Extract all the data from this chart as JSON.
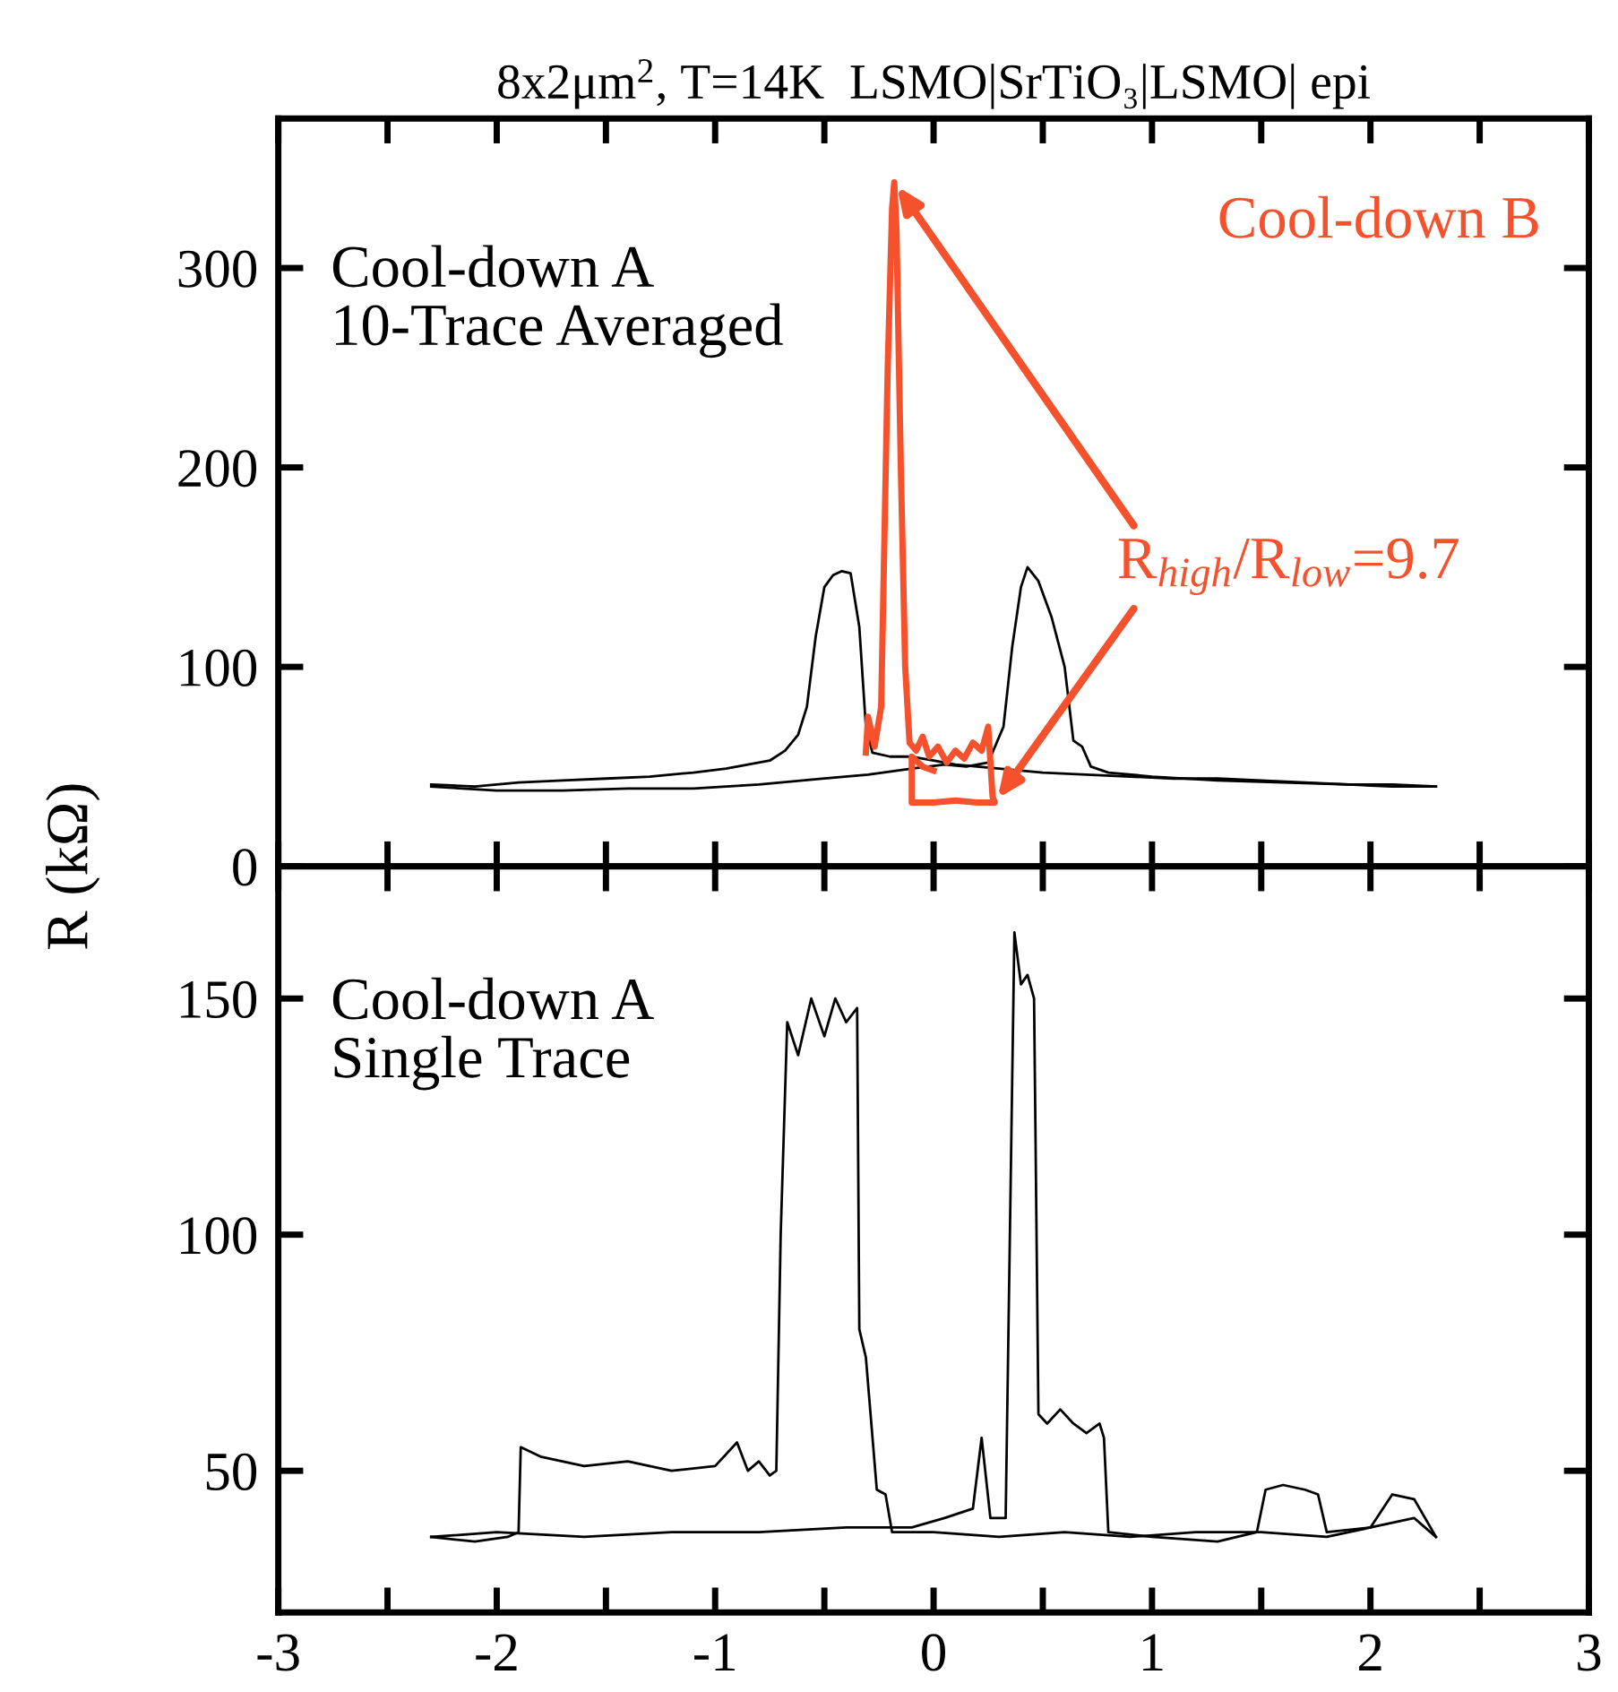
{
  "chart_data": [
    {
      "type": "line",
      "title": "8x2μm$^{2}$, T=14K  LSMO|SrTiO₃|LSMO| epi",
      "ylabel": "R (kΩ)",
      "xlim": [
        -3,
        3
      ],
      "xticks": [
        -3,
        {
          "value": -2.5,
          "label": null
        },
        -2,
        {
          "value": -1.5,
          "label": null
        },
        -1,
        {
          "value": -0.5,
          "label": null
        },
        0,
        {
          "value": 0.5,
          "label": null
        },
        1,
        {
          "value": 1.5,
          "label": null
        },
        2,
        {
          "value": 2.5,
          "label": null
        },
        3
      ],
      "ylim": [
        0,
        375
      ],
      "yticks": [
        0,
        100,
        200,
        300
      ],
      "tick_labels": "y",
      "grid": false,
      "legend": false,
      "annotations": [
        "Cool-down A\n10-Trace Averaged",
        {
          "text": "R$_{high}$/R$_{low}$=9.7",
          "x": -0.18,
          "y": 343
        }
      ],
      "series": [
        {
          "color": "#000000",
          "x": [
            -2.3,
            -2.1,
            -1.9,
            -1.7,
            -1.5,
            -1.3,
            -1.1,
            -0.95,
            -0.85,
            -0.75,
            -0.68,
            -0.62,
            -0.58,
            -0.54,
            -0.5,
            -0.46,
            -0.42,
            -0.38,
            -0.34,
            -0.31,
            -0.28,
            -0.2,
            -0.1,
            0,
            0.1,
            0.2,
            0.3,
            0.4,
            0.5,
            0.7,
            0.9,
            1.1,
            1.3,
            1.5,
            1.7,
            1.9,
            2.1,
            2.3
          ],
          "values": [
            41,
            40,
            42,
            43,
            44,
            45,
            47,
            49,
            51,
            53,
            58,
            66,
            80,
            115,
            140,
            146,
            148,
            147,
            120,
            70,
            57,
            55,
            55,
            53,
            51,
            50,
            49,
            48,
            47,
            46,
            45,
            44,
            44,
            43,
            42,
            41,
            41,
            40
          ]
        },
        {
          "color": "#000000",
          "x": [
            -2.3,
            -2.0,
            -1.7,
            -1.4,
            -1.1,
            -0.8,
            -0.5,
            -0.3,
            -0.1,
            0.05,
            0.15,
            0.25,
            0.32,
            0.36,
            0.4,
            0.43,
            0.48,
            0.54,
            0.6,
            0.64,
            0.68,
            0.72,
            0.8,
            1.0,
            1.3,
            1.6,
            1.9,
            2.1,
            2.3
          ],
          "values": [
            40,
            38,
            38,
            39,
            39,
            41,
            44,
            46,
            49,
            51,
            50,
            52,
            70,
            110,
            140,
            150,
            143,
            125,
            100,
            63,
            60,
            50,
            47,
            45,
            43,
            42,
            41,
            40,
            40
          ]
        },
        {
          "name": "Cool-down B",
          "color": "#f4512c",
          "x": [
            -0.31,
            -0.3,
            -0.27,
            -0.24,
            -0.21,
            -0.19,
            -0.18,
            -0.17,
            -0.15,
            -0.13,
            -0.11,
            -0.08,
            -0.05,
            -0.02,
            0.02,
            0.06,
            0.1,
            0.14,
            0.18,
            0.22,
            0.25,
            0.27,
            0.28,
            0.2,
            0.1,
            0,
            -0.1,
            -0.1,
            -0.05,
            0
          ],
          "values": [
            57,
            75,
            60,
            80,
            250,
            330,
            343,
            320,
            200,
            100,
            62,
            58,
            65,
            55,
            60,
            52,
            58,
            54,
            62,
            58,
            70,
            35,
            32,
            32,
            33,
            32,
            32,
            55,
            50,
            48
          ]
        }
      ]
    },
    {
      "type": "line",
      "xlim": [
        -3,
        3
      ],
      "xticks": [
        -3,
        {
          "value": -2.5,
          "label": null
        },
        -2,
        {
          "value": -1.5,
          "label": null
        },
        -1,
        {
          "value": -0.5,
          "label": null
        },
        0,
        {
          "value": 0.5,
          "label": null
        },
        1,
        {
          "value": 1.5,
          "label": null
        },
        2,
        {
          "value": 2.5,
          "label": null
        },
        3
      ],
      "ylim": [
        20,
        178
      ],
      "yticks": [
        50,
        100,
        150
      ],
      "grid": false,
      "legend": false,
      "annotations": [
        "Cool-down A\nSingle Trace"
      ],
      "series": [
        {
          "color": "#000000",
          "x": [
            -2.3,
            -2.1,
            -1.95,
            -1.9,
            -1.89,
            -1.8,
            -1.6,
            -1.4,
            -1.2,
            -1.0,
            -0.9,
            -0.85,
            -0.8,
            -0.75,
            -0.72,
            -0.7,
            -0.67,
            -0.62,
            -0.56,
            -0.5,
            -0.45,
            -0.4,
            -0.35,
            -0.34,
            -0.31,
            -0.26,
            -0.22,
            -0.19,
            0,
            0.3,
            0.6,
            0.9,
            1.2,
            1.5,
            1.8,
            2.0,
            2.2,
            2.3
          ],
          "values": [
            36,
            35,
            36,
            37,
            55,
            53,
            51,
            52,
            50,
            51,
            56,
            50,
            52,
            49,
            50,
            100,
            145,
            138,
            150,
            142,
            150,
            145,
            148,
            80,
            74,
            46,
            45,
            37,
            37,
            36,
            37,
            36,
            37,
            37,
            36,
            38,
            40,
            36
          ]
        },
        {
          "color": "#000000",
          "x": [
            -2.3,
            -2.0,
            -1.6,
            -1.2,
            -0.8,
            -0.4,
            -0.1,
            0.05,
            0.18,
            0.22,
            0.26,
            0.3,
            0.33,
            0.37,
            0.4,
            0.43,
            0.46,
            0.48,
            0.52,
            0.58,
            0.64,
            0.7,
            0.76,
            0.78,
            0.8,
            1.0,
            1.3,
            1.48,
            1.52,
            1.6,
            1.7,
            1.76,
            1.8,
            2.0,
            2.1,
            2.2,
            2.3
          ],
          "values": [
            36,
            37,
            36,
            37,
            37,
            38,
            38,
            40,
            42,
            57,
            40,
            40,
            40,
            164,
            153,
            155,
            150,
            62,
            60,
            63,
            60,
            58,
            60,
            57,
            37,
            36,
            35,
            37,
            46,
            47,
            46,
            45,
            37,
            38,
            45,
            44,
            36
          ]
        }
      ]
    }
  ]
}
